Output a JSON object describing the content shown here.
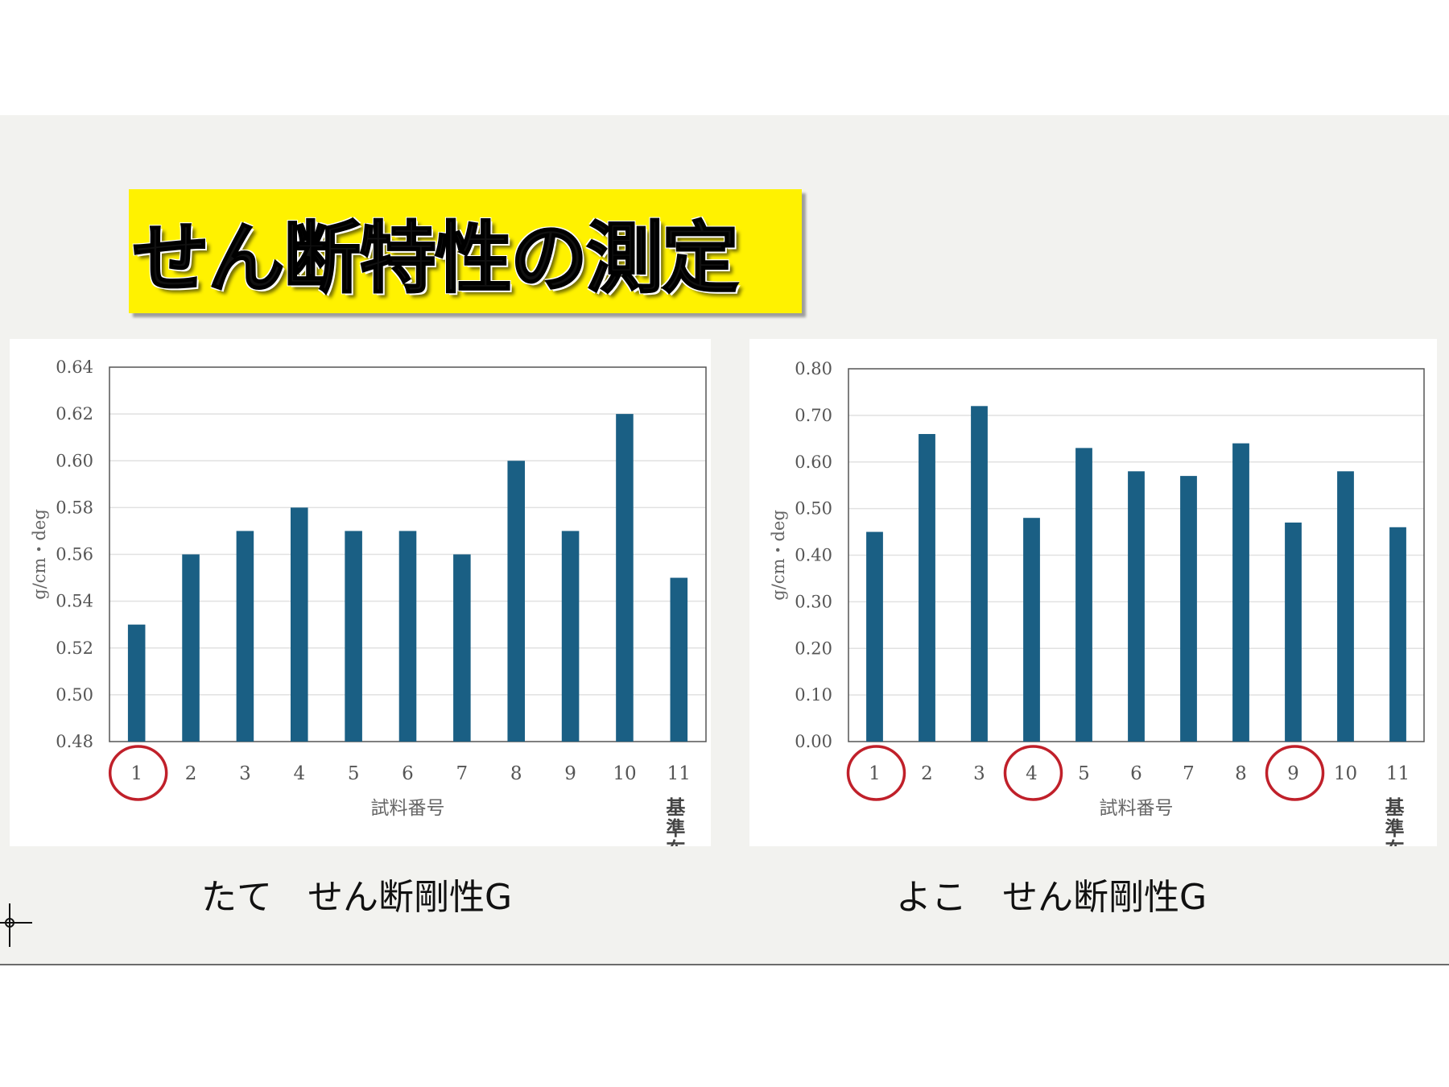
{
  "title": "せん断特性の測定",
  "captions": [
    "たて　せん断剛性G",
    "よこ　せん断剛性G"
  ],
  "chart_data": [
    {
      "type": "bar",
      "categories": [
        "1",
        "2",
        "3",
        "4",
        "5",
        "6",
        "7",
        "8",
        "9",
        "10",
        "11"
      ],
      "extra_label": {
        "category": "11",
        "text": "基\n準\n布"
      },
      "values": [
        0.53,
        0.56,
        0.57,
        0.58,
        0.57,
        0.57,
        0.56,
        0.6,
        0.57,
        0.62,
        0.55
      ],
      "xlabel": "試料番号",
      "ylabel": "g/cm・deg",
      "ylim": [
        0.48,
        0.64
      ],
      "yticks": [
        "0.48",
        "0.50",
        "0.52",
        "0.54",
        "0.56",
        "0.58",
        "0.60",
        "0.62",
        "0.64"
      ],
      "grid": true,
      "highlighted_categories": [
        "1"
      ],
      "colors": {
        "bar": "#1a5f84",
        "highlight": "#c0202a"
      }
    },
    {
      "type": "bar",
      "categories": [
        "1",
        "2",
        "3",
        "4",
        "5",
        "6",
        "7",
        "8",
        "9",
        "10",
        "11"
      ],
      "extra_label": {
        "category": "11",
        "text": "基\n準\n布"
      },
      "values": [
        0.45,
        0.66,
        0.72,
        0.48,
        0.63,
        0.58,
        0.57,
        0.64,
        0.47,
        0.58,
        0.46
      ],
      "xlabel": "試料番号",
      "ylabel": "g/cm・deg",
      "ylim": [
        0.0,
        0.8
      ],
      "yticks": [
        "0.00",
        "0.10",
        "0.20",
        "0.30",
        "0.40",
        "0.50",
        "0.60",
        "0.70",
        "0.80"
      ],
      "grid": true,
      "highlighted_categories": [
        "1",
        "4",
        "9"
      ],
      "colors": {
        "bar": "#1a5f84",
        "highlight": "#c0202a"
      }
    }
  ]
}
